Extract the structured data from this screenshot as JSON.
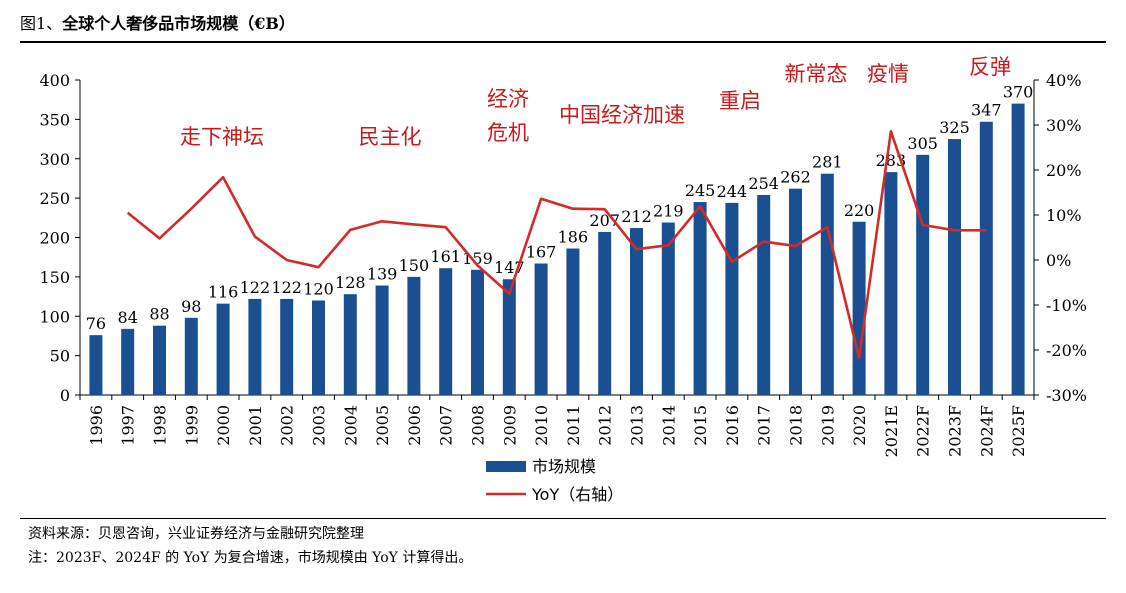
{
  "header": {
    "figure_no": "图1、",
    "title": "全球个人奢侈品市场规模（€B）"
  },
  "footer": {
    "source": "资料来源：贝恩咨询，兴业证券经济与金融研究院整理",
    "note": "注：2023F、2024F 的 YoY 为复合增速，市场规模由 YoY 计算得出。"
  },
  "colors": {
    "bar": "#1a4f91",
    "line": "#d42a2a",
    "annotation": "#c81a1a"
  },
  "chart_data": {
    "type": "bar",
    "title": "全球个人奢侈品市场规模（€B）",
    "categories": [
      "1996",
      "1997",
      "1998",
      "1999",
      "2000",
      "2001",
      "2002",
      "2003",
      "2004",
      "2005",
      "2006",
      "2007",
      "2008",
      "2009",
      "2010",
      "2011",
      "2012",
      "2013",
      "2014",
      "2015",
      "2016",
      "2017",
      "2018",
      "2019",
      "2020",
      "2021E",
      "2022F",
      "2023F",
      "2024F",
      "2025F"
    ],
    "series": [
      {
        "name": "市场规模",
        "type": "bar",
        "axis": "left",
        "values": [
          76,
          84,
          88,
          98,
          116,
          122,
          122,
          120,
          128,
          139,
          150,
          161,
          159,
          147,
          167,
          186,
          207,
          212,
          219,
          245,
          244,
          254,
          262,
          281,
          220,
          283,
          305,
          325,
          347,
          370
        ],
        "labels": [
          "76",
          "84",
          "88",
          "98",
          "116",
          "122",
          "122",
          "120",
          "128",
          "139",
          "150",
          "161",
          "159",
          "147",
          "167",
          "186",
          "207",
          "212",
          "219",
          "245",
          "244",
          "254",
          "262",
          "281",
          "220",
          "283",
          "305",
          "325",
          "347",
          "370"
        ]
      },
      {
        "name": "YoY（右轴）",
        "type": "line",
        "axis": "right",
        "unit": "%",
        "values": [
          null,
          10.5,
          4.8,
          11.4,
          18.4,
          5.2,
          0.0,
          -1.6,
          6.7,
          8.6,
          7.9,
          7.3,
          -1.2,
          -7.5,
          13.6,
          11.4,
          11.3,
          2.4,
          3.3,
          11.9,
          -0.4,
          4.1,
          3.1,
          7.3,
          -21.7,
          28.6,
          7.8,
          6.6,
          6.6,
          null
        ]
      }
    ],
    "yAxis": {
      "min": 0,
      "max": 400,
      "ticks": [
        0,
        50,
        100,
        150,
        200,
        250,
        300,
        350,
        400
      ]
    },
    "y2Axis": {
      "min": -30,
      "max": 40,
      "ticks": [
        "-30%",
        "-20%",
        "-10%",
        "0%",
        "10%",
        "20%",
        "30%",
        "40%"
      ]
    },
    "annotations": [
      {
        "text": "走下神坛",
        "at": "1999-2001"
      },
      {
        "text": "民主化",
        "at": "2005"
      },
      {
        "text": "经济",
        "at": "2009"
      },
      {
        "text": "危机",
        "at": "2009"
      },
      {
        "text": "中国经济加速",
        "at": "2010-2014"
      },
      {
        "text": "重启",
        "at": "2017"
      },
      {
        "text": "新常态",
        "at": "2019"
      },
      {
        "text": "疫情",
        "at": "2020-2021E"
      },
      {
        "text": "反弹",
        "at": "2023F"
      }
    ],
    "legend": {
      "position": "bottom"
    },
    "grid": false
  }
}
